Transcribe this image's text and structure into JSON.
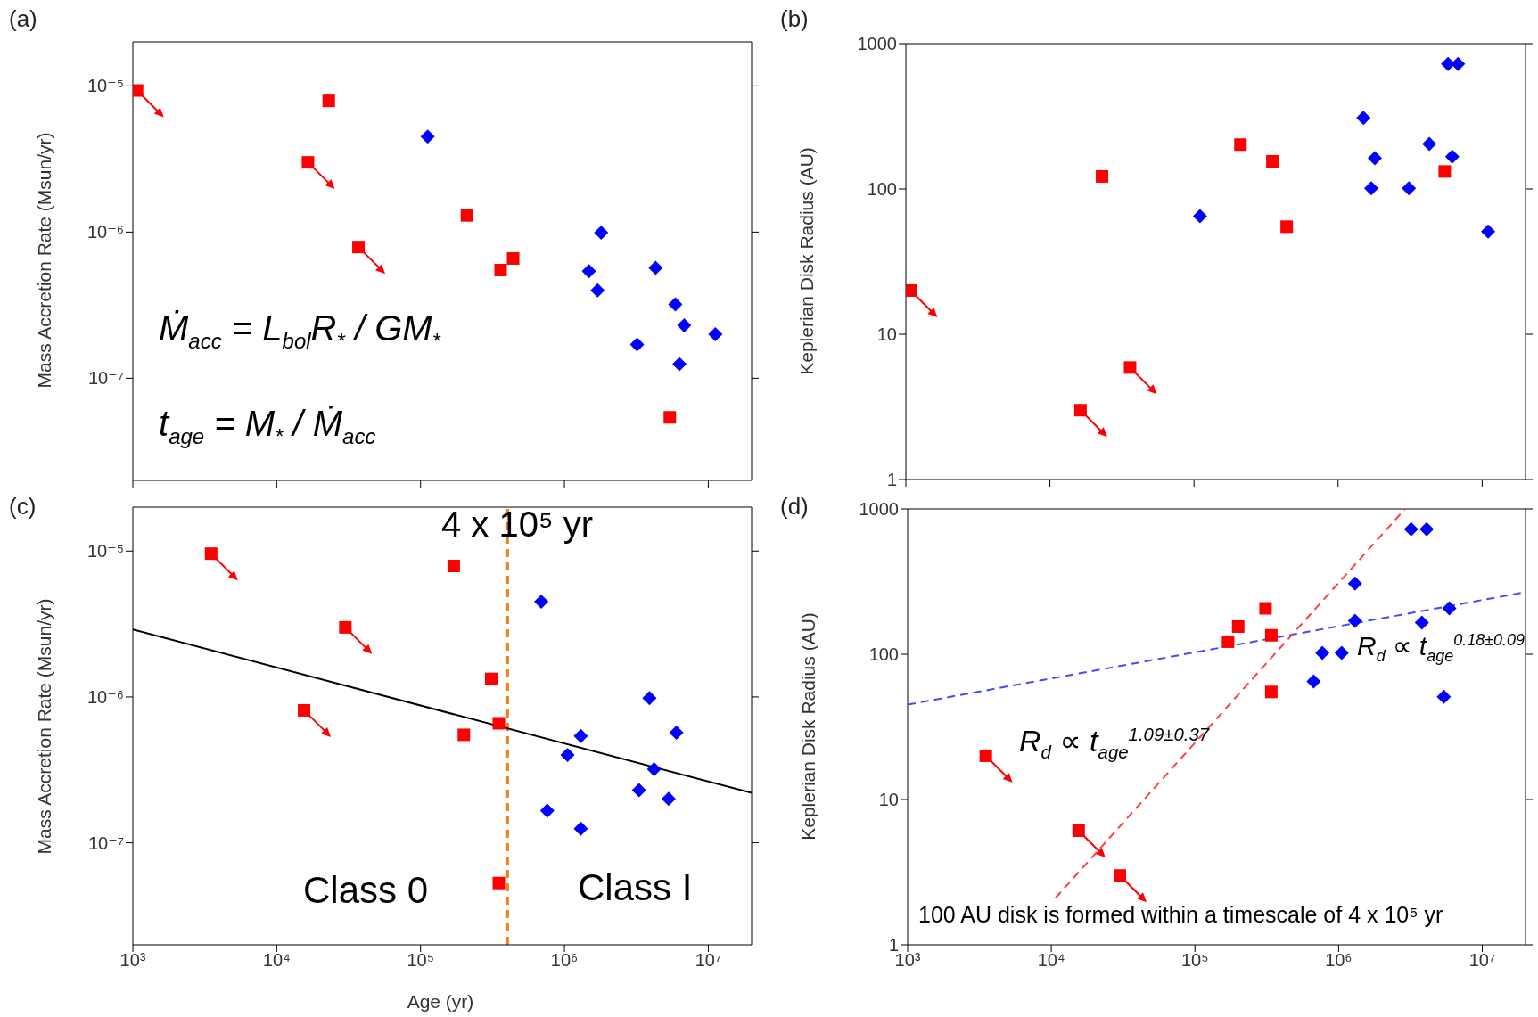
{
  "chart_data": [
    {
      "type": "scatter",
      "title": "(a)",
      "ylabel": "Mass Accretion Rate (Msun/yr)",
      "log": "xy",
      "tick_labels": "y",
      "xlim": [
        1000,
        20000000
      ],
      "ylim": [
        2e-08,
        2e-05
      ],
      "xticks": [
        1000,
        10000,
        100000,
        1000000,
        10000000
      ],
      "yticks": [
        {
          "value": 1e-07,
          "label": "10⁻⁷"
        },
        {
          "value": 1e-06,
          "label": "10⁻⁶"
        },
        {
          "value": 1e-05,
          "label": "10⁻⁵"
        }
      ],
      "series": [
        {
          "type": "scatter",
          "marker": "square",
          "color": "#ff0000",
          "x": [
            23000,
            210000,
            360000,
            440000,
            5400000
          ],
          "values": [
            7.9e-06,
            1.3e-06,
            5.5e-07,
            6.6e-07,
            5.4e-08
          ]
        },
        {
          "type": "scatter",
          "marker": "square",
          "color": "#ff0000",
          "x": [
            1070,
            16500,
            37000
          ],
          "values": [
            9.3e-06,
            3e-06,
            7.9e-07
          ]
        },
        {
          "type": "scatter",
          "marker": "diamond",
          "color": "#0000ff",
          "x": [
            112000,
            1800000,
            1480000,
            1700000,
            4300000,
            5900000,
            6800000,
            3200000,
            6300000,
            11200000
          ],
          "values": [
            4.5e-06,
            9.9e-07,
            5.4e-07,
            4e-07,
            5.7e-07,
            3.2e-07,
            2.3e-07,
            1.7e-07,
            1.25e-07,
            2e-07
          ]
        }
      ],
      "annotations": [
        "Ṁ$_{acc}$ = L$_{bol}$R$_{*}$ / GM$_{*}$",
        "t$_{age}$ = M$_{*}$ / Ṁ$_{acc}$"
      ]
    },
    {
      "type": "scatter",
      "title": "(b)",
      "ylabel": "Keplerian Disk Radius (AU)",
      "log": "xy",
      "tick_labels": "y",
      "xlim": [
        1000,
        20000000
      ],
      "ylim": [
        1,
        1000
      ],
      "xticks": [
        1000,
        10000,
        100000,
        1000000,
        10000000
      ],
      "yticks": [
        1,
        10,
        100,
        1000
      ],
      "series": [
        {
          "type": "scatter",
          "marker": "square",
          "color": "#ff0000",
          "x": [
            23000,
            210000,
            350000,
            440000,
            5500000
          ],
          "values": [
            122,
            202,
            155,
            55,
            132
          ]
        },
        {
          "type": "scatter",
          "marker": "square",
          "color": "#ff0000",
          "x": [
            1080,
            16300,
            36000
          ],
          "values": [
            20,
            3.0,
            5.9
          ]
        },
        {
          "type": "scatter",
          "marker": "diamond",
          "color": "#0000ff",
          "x": [
            110000,
            1500000,
            1800000,
            1700000,
            3100000,
            4300000,
            5800000,
            6800000,
            6200000,
            11000000
          ],
          "values": [
            65,
            309,
            163,
            101,
            101,
            204,
            725,
            725,
            167,
            51
          ]
        }
      ]
    },
    {
      "type": "scatter",
      "title": "(c)",
      "xlabel": "Age (yr)",
      "ylabel": "Mass Accretion Rate (Msun/yr)",
      "log": "xy",
      "xlim": [
        1000,
        20000000
      ],
      "ylim": [
        2e-08,
        2e-05
      ],
      "xticks": [
        {
          "value": 1000,
          "label": "10³"
        },
        {
          "value": 10000,
          "label": "10⁴"
        },
        {
          "value": 100000,
          "label": "10⁵"
        },
        {
          "value": 1000000,
          "label": "10⁶"
        },
        {
          "value": 10000000,
          "label": "10⁷"
        }
      ],
      "yticks": [
        {
          "value": 1e-07,
          "label": "10⁻⁷"
        },
        {
          "value": 1e-06,
          "label": "10⁻⁶"
        },
        {
          "value": 1e-05,
          "label": "10⁻⁵"
        }
      ],
      "series": [
        {
          "type": "line",
          "marker": "none",
          "line_style": "solid",
          "color": "#000000",
          "x": [
            1000,
            20000000
          ],
          "values": [
            2.9e-06,
            2.2e-07
          ]
        },
        {
          "type": "scatter",
          "marker": "square",
          "color": "#ff0000",
          "x": [
            170000,
            310000,
            200000,
            350000,
            350000
          ],
          "values": [
            7.9e-06,
            1.33e-06,
            5.5e-07,
            6.6e-07,
            5.3e-08
          ]
        },
        {
          "type": "scatter",
          "marker": "square",
          "color": "#ff0000",
          "x": [
            3500,
            30000,
            15500
          ],
          "values": [
            9.6e-06,
            3e-06,
            8.1e-07
          ]
        },
        {
          "type": "scatter",
          "marker": "diamond",
          "color": "#0000ff",
          "x": [
            690000,
            3900000,
            1300000,
            1050000,
            6000000,
            4200000,
            3300000,
            5300000,
            760000,
            1300000
          ],
          "values": [
            4.5e-06,
            9.8e-07,
            5.4e-07,
            4e-07,
            5.7e-07,
            3.2e-07,
            2.3e-07,
            2e-07,
            1.66e-07,
            1.25e-07
          ]
        }
      ],
      "ref_lines": [
        {
          "axis": "x",
          "value": 400000,
          "label": "4 x 10⁵ yr",
          "color": "#f57f17",
          "line_style": "dashed"
        }
      ],
      "annotations": [
        "Class 0",
        "Class I"
      ]
    },
    {
      "type": "scatter",
      "title": "(d)",
      "ylabel": "Keplerian Disk Radius (AU)",
      "log": "xy",
      "xlim": [
        1000,
        20000000
      ],
      "ylim": [
        1,
        1000
      ],
      "xticks": [
        {
          "value": 1000,
          "label": "10³"
        },
        {
          "value": 10000,
          "label": "10⁴"
        },
        {
          "value": 100000,
          "label": "10⁵"
        },
        {
          "value": 1000000,
          "label": "10⁶"
        },
        {
          "value": 10000000,
          "label": "10⁷"
        }
      ],
      "yticks": [
        1,
        10,
        100,
        1000
      ],
      "series": [
        {
          "type": "line",
          "marker": "none",
          "line_style": "dashed",
          "color": "#4a4af5",
          "x": [
            1000,
            19000000
          ],
          "values": [
            45,
            265
          ]
        },
        {
          "type": "line",
          "marker": "none",
          "line_style": "dashed",
          "color": "#ff4040",
          "x": [
            10700,
            2900000
          ],
          "values": [
            2.1,
            1000
          ]
        },
        {
          "type": "scatter",
          "marker": "square",
          "color": "#ff0000",
          "x": [
            170000,
            200000,
            310000,
            340000,
            340000
          ],
          "values": [
            122,
            155,
            207,
            135,
            55
          ]
        },
        {
          "type": "scatter",
          "marker": "square",
          "color": "#ff0000",
          "x": [
            3500,
            15500,
            30000
          ],
          "values": [
            20,
            6.1,
            3.0
          ]
        },
        {
          "type": "scatter",
          "marker": "diamond",
          "color": "#0000ff",
          "x": [
            670000,
            770000,
            1050000,
            1300000,
            1300000,
            3200000,
            4100000,
            3800000,
            5900000,
            5400000
          ],
          "values": [
            65,
            102,
            102,
            306,
            170,
            725,
            725,
            165,
            207,
            51
          ]
        }
      ],
      "annotations": [
        "R$_{d}$ ∝ t$_{age}$$^{1.09±0.37}$",
        "R$_{d}$ ∝ t$_{age}$$^{0.18±0.09}$",
        "100 AU disk is formed within a timescale of 4 x 10⁵ yr"
      ]
    }
  ]
}
